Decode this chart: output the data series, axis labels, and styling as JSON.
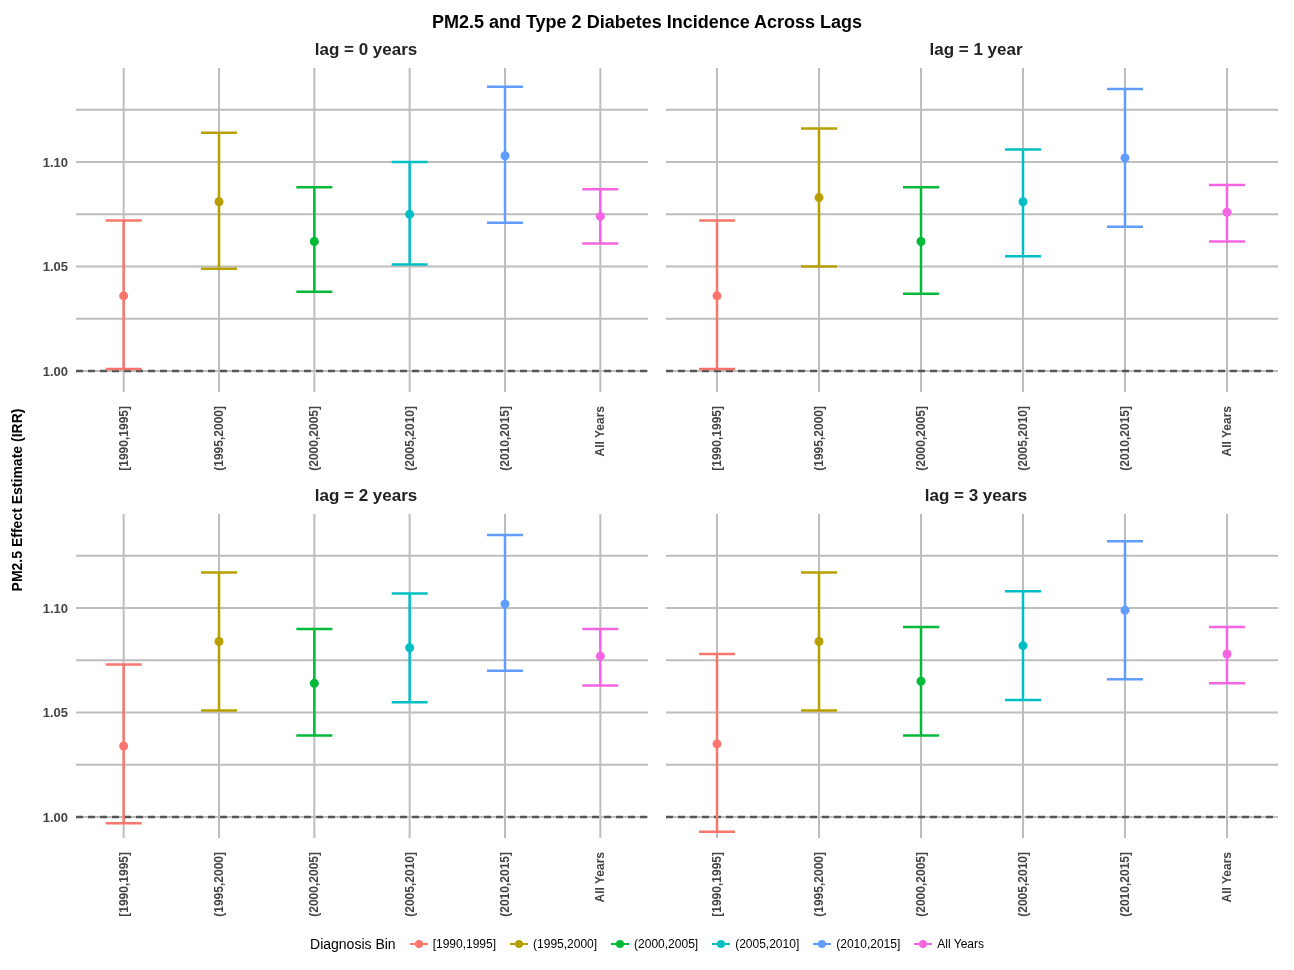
{
  "chart_data": [
    {
      "type": "scatter",
      "title": "PM2.5 and Type 2 Diabetes Incidence Across Lags",
      "subtitle": "lag = 0 years",
      "ylabel": "PM2.5 Effect Estimate (IRR)",
      "legend_title": "Diagnosis Bin",
      "legend": "bottom",
      "grid": true,
      "marker": "circle",
      "categories": [
        "[1990,1995]",
        "(1995,2000]",
        "(2000,2005]",
        "(2005,2010]",
        "(2010,2015]",
        "All Years"
      ],
      "series": [
        {
          "name": "[1990,1995]",
          "color": "#f8766d",
          "values": [
            1.036,
            null,
            null,
            null,
            null,
            null
          ],
          "errors": [
            [
              1.001,
              1.072
            ],
            null,
            null,
            null,
            null,
            null
          ]
        },
        {
          "name": "(1995,2000]",
          "color": "#b79f00",
          "values": [
            null,
            1.081,
            null,
            null,
            null,
            null
          ],
          "errors": [
            null,
            [
              1.049,
              1.114
            ],
            null,
            null,
            null,
            null
          ]
        },
        {
          "name": "(2000,2005]",
          "color": "#00ba38",
          "values": [
            null,
            null,
            1.062,
            null,
            null,
            null
          ],
          "errors": [
            null,
            null,
            [
              1.038,
              1.088
            ],
            null,
            null,
            null
          ]
        },
        {
          "name": "(2005,2010]",
          "color": "#00bfc4",
          "values": [
            null,
            null,
            null,
            1.075,
            null,
            null
          ],
          "errors": [
            null,
            null,
            null,
            [
              1.051,
              1.1
            ],
            null,
            null
          ]
        },
        {
          "name": "(2010,2015]",
          "color": "#619cff",
          "values": [
            null,
            null,
            null,
            null,
            1.103,
            null
          ],
          "errors": [
            null,
            null,
            null,
            null,
            [
              1.071,
              1.136
            ],
            null
          ]
        },
        {
          "name": "All Years",
          "color": "#f564e3",
          "values": [
            null,
            null,
            null,
            null,
            null,
            1.074
          ],
          "errors": [
            null,
            null,
            null,
            null,
            null,
            [
              1.061,
              1.087
            ]
          ]
        }
      ],
      "ylim": [
        0.99,
        1.145
      ],
      "yticks": [
        {
          "value": 1,
          "label": "1.00"
        },
        {
          "value": 1.025,
          "label": null
        },
        {
          "value": 1.05,
          "label": "1.05"
        },
        {
          "value": 1.075,
          "label": null
        },
        {
          "value": 1.1,
          "label": "1.10"
        },
        {
          "value": 1.125,
          "label": null
        }
      ],
      "ref_lines": [
        {
          "axis": "y",
          "value": 1,
          "color": "#555555",
          "line_style": "dashed"
        }
      ]
    },
    {
      "type": "scatter",
      "subtitle": "lag = 1 year",
      "grid": true,
      "marker": "circle",
      "tick_labels": "x",
      "categories": [
        "[1990,1995]",
        "(1995,2000]",
        "(2000,2005]",
        "(2005,2010]",
        "(2010,2015]",
        "All Years"
      ],
      "series": [
        {
          "color": "#f8766d",
          "values": [
            1.036,
            null,
            null,
            null,
            null,
            null
          ],
          "errors": [
            [
              1.001,
              1.072
            ],
            null,
            null,
            null,
            null,
            null
          ]
        },
        {
          "color": "#b79f00",
          "values": [
            null,
            1.083,
            null,
            null,
            null,
            null
          ],
          "errors": [
            null,
            [
              1.05,
              1.116
            ],
            null,
            null,
            null,
            null
          ]
        },
        {
          "color": "#00ba38",
          "values": [
            null,
            null,
            1.062,
            null,
            null,
            null
          ],
          "errors": [
            null,
            null,
            [
              1.037,
              1.088
            ],
            null,
            null,
            null
          ]
        },
        {
          "color": "#00bfc4",
          "values": [
            null,
            null,
            null,
            1.081,
            null,
            null
          ],
          "errors": [
            null,
            null,
            null,
            [
              1.055,
              1.106
            ],
            null,
            null
          ]
        },
        {
          "color": "#619cff",
          "values": [
            null,
            null,
            null,
            null,
            1.102,
            null
          ],
          "errors": [
            null,
            null,
            null,
            null,
            [
              1.069,
              1.135
            ],
            null
          ]
        },
        {
          "color": "#f564e3",
          "values": [
            null,
            null,
            null,
            null,
            null,
            1.076
          ],
          "errors": [
            null,
            null,
            null,
            null,
            null,
            [
              1.062,
              1.089
            ]
          ]
        }
      ],
      "ylim": [
        0.99,
        1.145
      ],
      "yticks": [
        {
          "value": 1,
          "label": null
        },
        {
          "value": 1.025,
          "label": null
        },
        {
          "value": 1.05,
          "label": null
        },
        {
          "value": 1.075,
          "label": null
        },
        {
          "value": 1.1,
          "label": null
        },
        {
          "value": 1.125,
          "label": null
        }
      ],
      "ref_lines": [
        {
          "axis": "y",
          "value": 1,
          "color": "#555555",
          "line_style": "dashed"
        }
      ]
    },
    {
      "type": "scatter",
      "subtitle": "lag = 2 years",
      "grid": true,
      "marker": "circle",
      "categories": [
        "[1990,1995]",
        "(1995,2000]",
        "(2000,2005]",
        "(2005,2010]",
        "(2010,2015]",
        "All Years"
      ],
      "series": [
        {
          "color": "#f8766d",
          "values": [
            1.034,
            null,
            null,
            null,
            null,
            null
          ],
          "errors": [
            [
              0.997,
              1.073
            ],
            null,
            null,
            null,
            null,
            null
          ]
        },
        {
          "color": "#b79f00",
          "values": [
            null,
            1.084,
            null,
            null,
            null,
            null
          ],
          "errors": [
            null,
            [
              1.051,
              1.117
            ],
            null,
            null,
            null,
            null
          ]
        },
        {
          "color": "#00ba38",
          "values": [
            null,
            null,
            1.064,
            null,
            null,
            null
          ],
          "errors": [
            null,
            null,
            [
              1.039,
              1.09
            ],
            null,
            null,
            null
          ]
        },
        {
          "color": "#00bfc4",
          "values": [
            null,
            null,
            null,
            1.081,
            null,
            null
          ],
          "errors": [
            null,
            null,
            null,
            [
              1.055,
              1.107
            ],
            null,
            null
          ]
        },
        {
          "color": "#619cff",
          "values": [
            null,
            null,
            null,
            null,
            1.102,
            null
          ],
          "errors": [
            null,
            null,
            null,
            null,
            [
              1.07,
              1.135
            ],
            null
          ]
        },
        {
          "color": "#f564e3",
          "values": [
            null,
            null,
            null,
            null,
            null,
            1.077
          ],
          "errors": [
            null,
            null,
            null,
            null,
            null,
            [
              1.063,
              1.09
            ]
          ]
        }
      ],
      "ylim": [
        0.99,
        1.145
      ],
      "yticks": [
        {
          "value": 1,
          "label": "1.00"
        },
        {
          "value": 1.025,
          "label": null
        },
        {
          "value": 1.05,
          "label": "1.05"
        },
        {
          "value": 1.075,
          "label": null
        },
        {
          "value": 1.1,
          "label": "1.10"
        },
        {
          "value": 1.125,
          "label": null
        }
      ],
      "ref_lines": [
        {
          "axis": "y",
          "value": 1,
          "color": "#555555",
          "line_style": "dashed"
        }
      ]
    },
    {
      "type": "scatter",
      "subtitle": "lag = 3 years",
      "grid": true,
      "marker": "circle",
      "tick_labels": "x",
      "categories": [
        "[1990,1995]",
        "(1995,2000]",
        "(2000,2005]",
        "(2005,2010]",
        "(2010,2015]",
        "All Years"
      ],
      "series": [
        {
          "color": "#f8766d",
          "values": [
            1.035,
            null,
            null,
            null,
            null,
            null
          ],
          "errors": [
            [
              0.993,
              1.078
            ],
            null,
            null,
            null,
            null,
            null
          ]
        },
        {
          "color": "#b79f00",
          "values": [
            null,
            1.084,
            null,
            null,
            null,
            null
          ],
          "errors": [
            null,
            [
              1.051,
              1.117
            ],
            null,
            null,
            null,
            null
          ]
        },
        {
          "color": "#00ba38",
          "values": [
            null,
            null,
            1.065,
            null,
            null,
            null
          ],
          "errors": [
            null,
            null,
            [
              1.039,
              1.091
            ],
            null,
            null,
            null
          ]
        },
        {
          "color": "#00bfc4",
          "values": [
            null,
            null,
            null,
            1.082,
            null,
            null
          ],
          "errors": [
            null,
            null,
            null,
            [
              1.056,
              1.108
            ],
            null,
            null
          ]
        },
        {
          "color": "#619cff",
          "values": [
            null,
            null,
            null,
            null,
            1.099,
            null
          ],
          "errors": [
            null,
            null,
            null,
            null,
            [
              1.066,
              1.132
            ],
            null
          ]
        },
        {
          "color": "#f564e3",
          "values": [
            null,
            null,
            null,
            null,
            null,
            1.078
          ],
          "errors": [
            null,
            null,
            null,
            null,
            null,
            [
              1.064,
              1.091
            ]
          ]
        }
      ],
      "ylim": [
        0.99,
        1.145
      ],
      "yticks": [
        {
          "value": 1,
          "label": null
        },
        {
          "value": 1.025,
          "label": null
        },
        {
          "value": 1.05,
          "label": null
        },
        {
          "value": 1.075,
          "label": null
        },
        {
          "value": 1.1,
          "label": null
        },
        {
          "value": 1.125,
          "label": null
        }
      ],
      "ref_lines": [
        {
          "axis": "y",
          "value": 1,
          "color": "#555555",
          "line_style": "dashed"
        }
      ]
    }
  ]
}
